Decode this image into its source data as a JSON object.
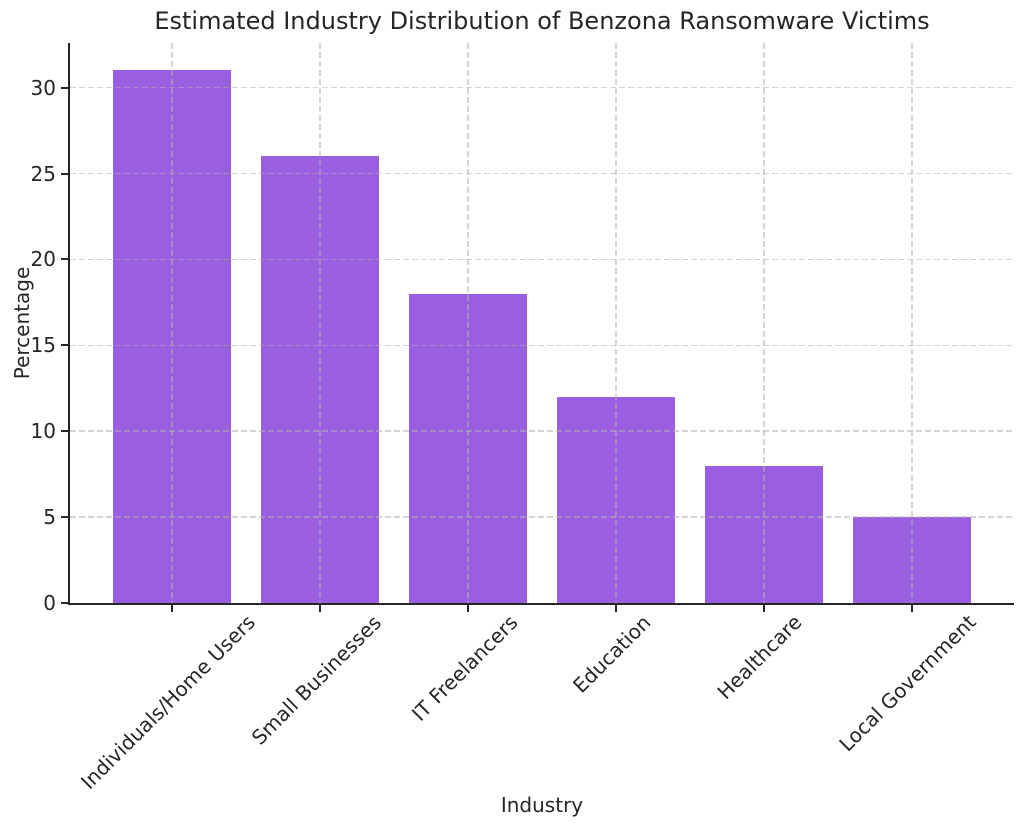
{
  "figure": {
    "background": "#ffffff"
  },
  "chart_data": {
    "type": "bar",
    "title": "Estimated Industry Distribution of Benzona Ransomware Victims",
    "xlabel": "Industry",
    "ylabel": "Percentage",
    "categories": [
      "Individuals/Home Users",
      "Small Businesses",
      "IT Freelancers",
      "Education",
      "Healthcare",
      "Local Government"
    ],
    "values": [
      31,
      26,
      18,
      12,
      8,
      5
    ],
    "yticks": [
      0,
      5,
      10,
      15,
      20,
      25,
      30
    ],
    "ylim": [
      0,
      32.6
    ],
    "xtick_rotation_deg": 45,
    "grid": "both, dashed, drawn above bars",
    "legend": "none",
    "colors": {
      "bar_fill": "#9a5fe0",
      "axis_spine": "#262626",
      "text": "#262626",
      "gridline": "#b2b2b2"
    }
  }
}
